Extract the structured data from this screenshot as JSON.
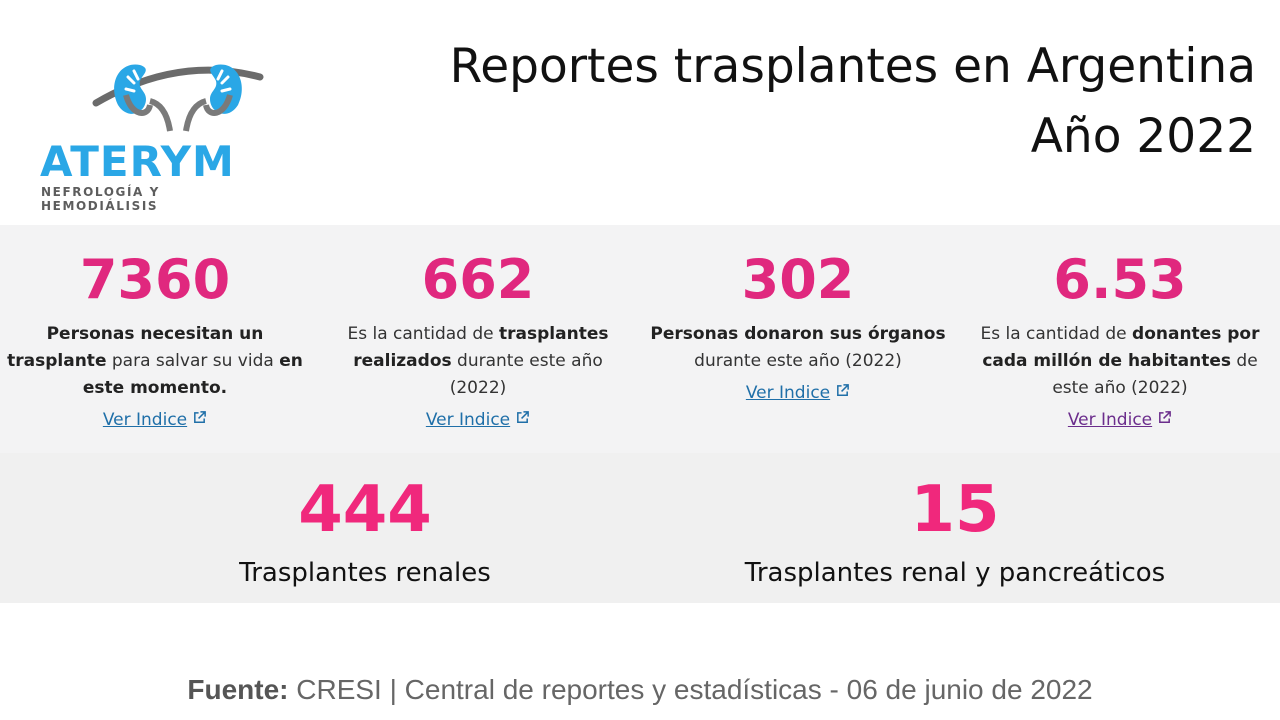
{
  "logo": {
    "name": "ATERYM",
    "tagline": "NEFROLOGÍA Y HEMODIÁLISIS"
  },
  "title": {
    "line1": "Reportes trasplantes en Argentina",
    "line2": "Año 2022"
  },
  "stats": [
    {
      "value": "7360",
      "desc_parts": [
        {
          "text": "Personas necesitan un trasplante",
          "bold": true
        },
        {
          "text": " para salvar su vida ",
          "bold": false
        },
        {
          "text": "en este momento.",
          "bold": true
        }
      ],
      "link": "Ver Indice"
    },
    {
      "value": "662",
      "desc_parts": [
        {
          "text": "Es la cantidad de ",
          "bold": false
        },
        {
          "text": "trasplantes realizados",
          "bold": true
        },
        {
          "text": " durante este año (2022)",
          "bold": false
        }
      ],
      "link": "Ver Indice"
    },
    {
      "value": "302",
      "desc_parts": [
        {
          "text": "Personas donaron sus órganos",
          "bold": true
        },
        {
          "text": " durante este año (2022)",
          "bold": false
        }
      ],
      "link": "Ver Indice"
    },
    {
      "value": "6.53",
      "desc_parts": [
        {
          "text": "Es la cantidad de ",
          "bold": false
        },
        {
          "text": "donantes por cada millón de habitantes",
          "bold": true
        },
        {
          "text": " de este año (2022)",
          "bold": false
        }
      ],
      "link": "Ver Indice"
    }
  ],
  "highlights": [
    {
      "value": "444",
      "label": "Trasplantes renales"
    },
    {
      "value": "15",
      "label": "Trasplantes renal y pancreáticos"
    }
  ],
  "source": {
    "label": "Fuente:",
    "text": " CRESI | Central de reportes y estadísticas -  06 de junio de 2022"
  },
  "colors": {
    "accent": "#e0287e",
    "logo_blue": "#2aa7e6",
    "link": "#1f6fa8",
    "link_visited": "#6b2d8c"
  }
}
